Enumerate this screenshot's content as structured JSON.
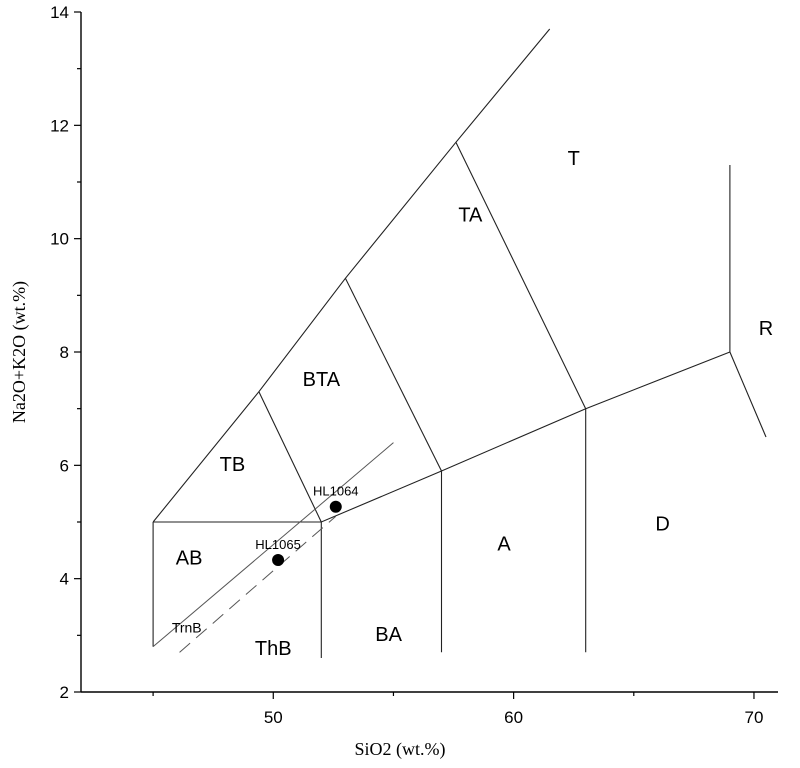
{
  "chart_data": {
    "type": "scatter",
    "title": "",
    "xlabel": "SiO2 (wt.%)",
    "ylabel": "Na2O+K2O (wt.%)",
    "xlim": [
      42,
      71
    ],
    "ylim": [
      2,
      14
    ],
    "xticks": [
      50,
      60,
      70
    ],
    "yticks": [
      2,
      4,
      6,
      8,
      10,
      12,
      14
    ],
    "grid": false,
    "points": [
      {
        "label": "HL1064",
        "x": 52.6,
        "y": 5.27
      },
      {
        "label": "HL1065",
        "x": 50.2,
        "y": 4.33
      }
    ],
    "fields": [
      {
        "label": "T",
        "x": 62.5,
        "y": 11.3
      },
      {
        "label": "TA",
        "x": 58.2,
        "y": 10.3
      },
      {
        "label": "R",
        "x": 70.5,
        "y": 8.3
      },
      {
        "label": "BTA",
        "x": 52.0,
        "y": 7.4
      },
      {
        "label": "TB",
        "x": 48.3,
        "y": 5.9
      },
      {
        "label": "AB",
        "x": 46.5,
        "y": 4.25
      },
      {
        "label": "A",
        "x": 59.6,
        "y": 4.5
      },
      {
        "label": "D",
        "x": 66.2,
        "y": 4.85
      },
      {
        "label": "BA",
        "x": 54.8,
        "y": 2.9
      },
      {
        "label": "ThB",
        "x": 50.0,
        "y": 2.65
      },
      {
        "label": "TrnB",
        "x": 46.4,
        "y": 3.05,
        "small": true
      }
    ],
    "boundaries": [
      [
        [
          45,
          5
        ],
        [
          52,
          5
        ],
        [
          57,
          5.9
        ],
        [
          63,
          7
        ],
        [
          69,
          8
        ]
      ],
      [
        [
          45,
          5
        ],
        [
          49.4,
          7.3
        ],
        [
          53,
          9.3
        ],
        [
          57.6,
          11.7
        ],
        [
          61.5,
          13.7
        ]
      ],
      [
        [
          49.4,
          7.3
        ],
        [
          52,
          5
        ]
      ],
      [
        [
          53,
          9.3
        ],
        [
          57,
          5.9
        ]
      ],
      [
        [
          57.6,
          11.7
        ],
        [
          63,
          7
        ]
      ],
      [
        [
          69,
          8
        ],
        [
          69,
          11.3
        ]
      ],
      [
        [
          69,
          8
        ],
        [
          70.5,
          6.5
        ]
      ],
      [
        [
          45,
          5
        ],
        [
          45,
          2.8
        ]
      ],
      [
        [
          52,
          5
        ],
        [
          52,
          2.6
        ]
      ],
      [
        [
          57,
          5.9
        ],
        [
          57,
          2.7
        ]
      ],
      [
        [
          63,
          7
        ],
        [
          63,
          2.7
        ]
      ]
    ],
    "reference_lines": [
      {
        "from": [
          45,
          2.8
        ],
        "to": [
          55,
          6.4
        ],
        "dash": "solid"
      },
      {
        "from": [
          46.1,
          2.7
        ],
        "to": [
          52.6,
          5.1
        ],
        "dash": "dashed"
      }
    ]
  }
}
